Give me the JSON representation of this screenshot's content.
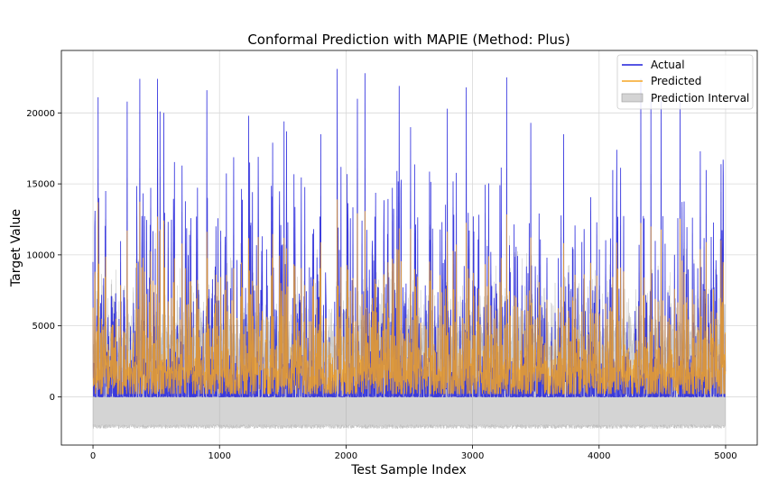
{
  "chart_data": {
    "type": "line",
    "title": "Conformal Prediction with MAPIE (Method: Plus)",
    "xlabel": "Test Sample Index",
    "ylabel": "Target Value",
    "xlim": [
      -250,
      5250
    ],
    "ylim": [
      -3400,
      24400
    ],
    "xticks": [
      0,
      1000,
      2000,
      3000,
      4000,
      5000
    ],
    "yticks": [
      0,
      5000,
      10000,
      15000,
      20000
    ],
    "grid": true,
    "legend_position": "top-right",
    "n_samples": 5000,
    "series": [
      {
        "name": "Actual",
        "kind": "line",
        "color": "#1f1fdc",
        "peaks": [
          [
            15,
            13100
          ],
          [
            40,
            21100
          ],
          [
            100,
            14500
          ],
          [
            270,
            20800
          ],
          [
            370,
            22400
          ],
          [
            510,
            22400
          ],
          [
            530,
            20100
          ],
          [
            560,
            20000
          ],
          [
            900,
            21600
          ],
          [
            1230,
            19800
          ],
          [
            1420,
            17900
          ],
          [
            1510,
            19400
          ],
          [
            1530,
            18700
          ],
          [
            1800,
            18500
          ],
          [
            1930,
            23100
          ],
          [
            1960,
            16200
          ],
          [
            2090,
            21000
          ],
          [
            2150,
            22800
          ],
          [
            2420,
            21900
          ],
          [
            2510,
            19000
          ],
          [
            2800,
            20300
          ],
          [
            2950,
            21800
          ],
          [
            3270,
            22500
          ],
          [
            3460,
            19300
          ],
          [
            3720,
            18500
          ],
          [
            4140,
            17400
          ],
          [
            4330,
            22400
          ],
          [
            4410,
            21000
          ],
          [
            4490,
            20900
          ],
          [
            4640,
            20800
          ],
          [
            4800,
            17300
          ],
          [
            4980,
            16700
          ]
        ]
      },
      {
        "name": "Predicted",
        "kind": "line",
        "color": "#f5a623",
        "max": 13900
      },
      {
        "name": "Prediction Interval",
        "kind": "band",
        "color": "#a9a9a9",
        "lower": -2100,
        "upper_max": 16100
      }
    ]
  }
}
